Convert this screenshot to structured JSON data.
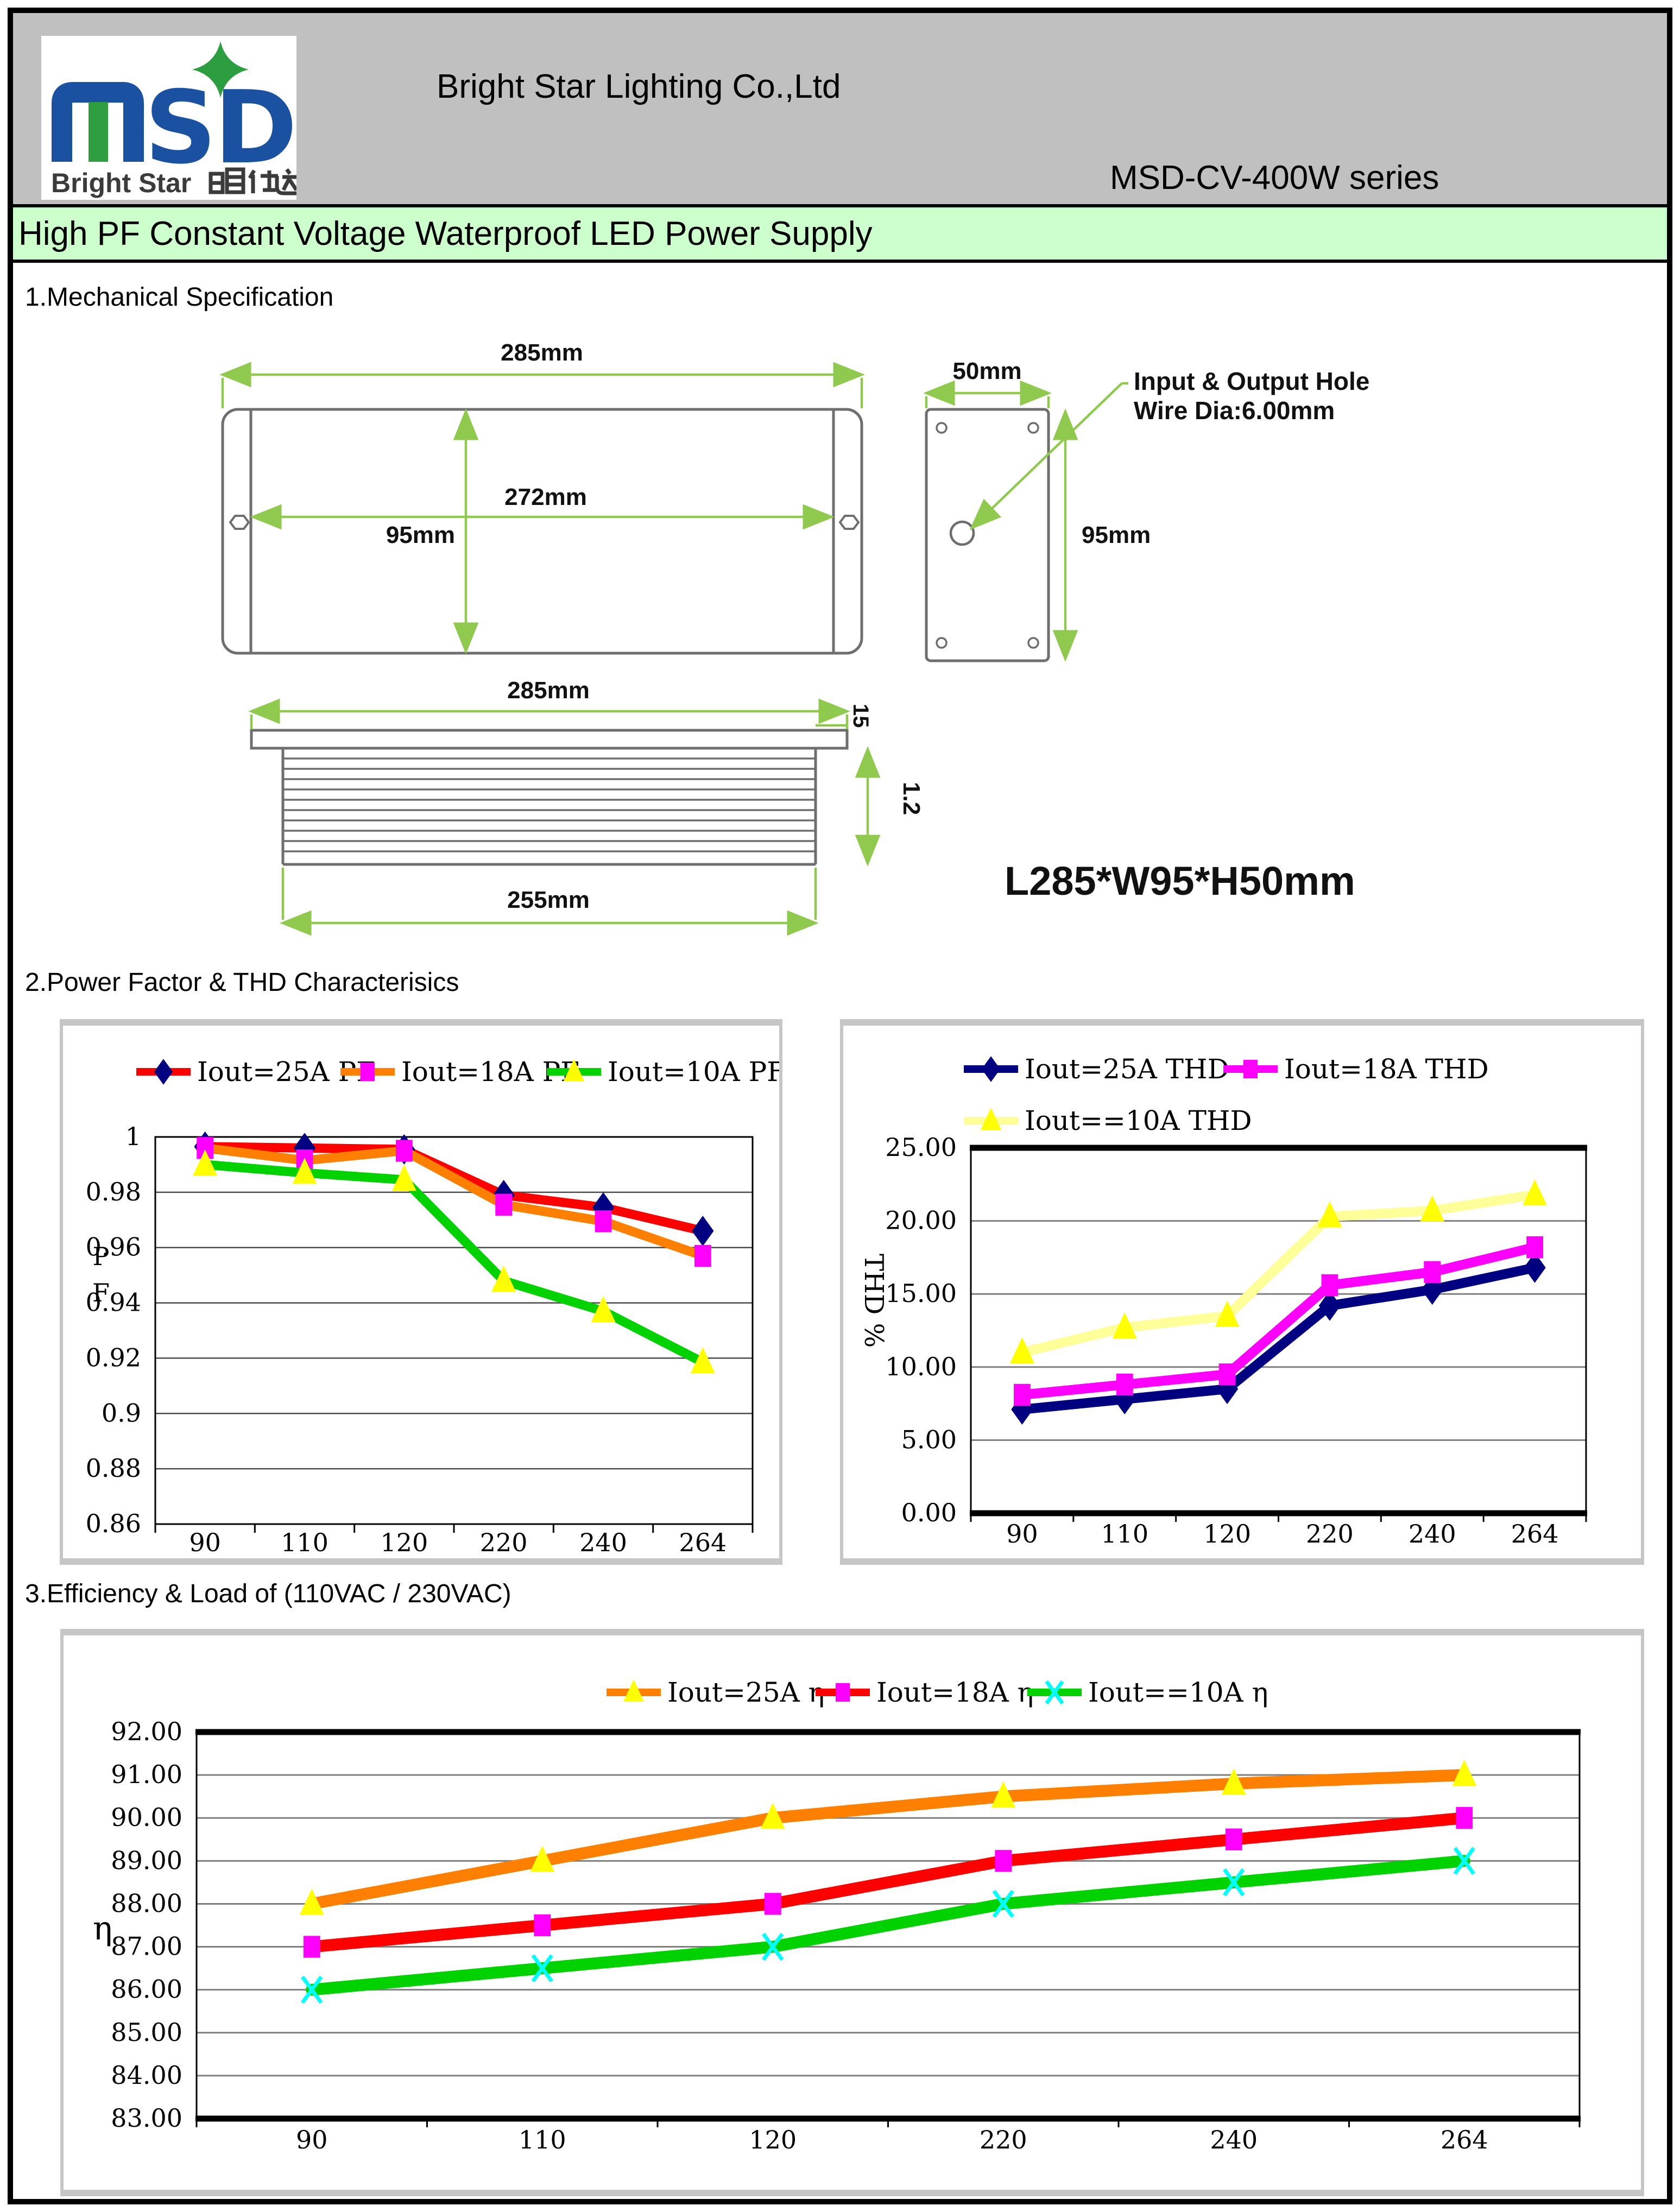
{
  "header": {
    "company": "Bright Star Lighting Co.,Ltd",
    "series": "MSD-CV-400W series",
    "logo": {
      "mark": "MSD",
      "subtitle_latin": "Bright Star",
      "subtitle_cjk": "明仕达"
    }
  },
  "banner": {
    "title": "High PF Constant Voltage Waterproof LED Power Supply"
  },
  "sections": {
    "s1": "1.Mechanical Specification",
    "s2": "2.Power Factor & THD Characterisics",
    "s3": "3.Efficiency & Load of (110VAC / 230VAC)"
  },
  "mech": {
    "dim_285_top": "285mm",
    "dim_272": "272mm",
    "dim_95_center": "95mm",
    "dim_50": "50mm",
    "dim_95_side": "95mm",
    "hole_note_line1": "Input & Output Hole",
    "hole_note_line2": "Wire Dia:6.00mm",
    "dim_285_profile": "285mm",
    "dim_15": "15",
    "dim_1_2": "1.2",
    "dim_255": "255mm",
    "size_text": "L285*W95*H50mm"
  },
  "chart_data": [
    {
      "type": "line",
      "title": "",
      "xlabel": "",
      "ylabel": "P F",
      "categories": [
        "90",
        "110",
        "120",
        "220",
        "240",
        "264"
      ],
      "ylim": [
        0.86,
        1.0
      ],
      "ytick_values": [
        1,
        0.98,
        0.96,
        0.94,
        0.92,
        0.9,
        0.88,
        0.86
      ],
      "ytick_labels": [
        "1",
        "0.98",
        "0.96",
        "0.94",
        "0.92",
        "0.9",
        "0.88",
        "0.86"
      ],
      "grid": true,
      "legend_position": "top",
      "series": [
        {
          "name": "Iout=25A PF",
          "line_color": "#FF0000",
          "marker": "diamond",
          "marker_color": "#000080",
          "values": [
            0.9965,
            0.996,
            0.9955,
            0.979,
            0.9745,
            0.966
          ]
        },
        {
          "name": "Iout=18A PF",
          "line_color": "#FF8000",
          "marker": "square",
          "marker_color": "#FF00FF",
          "values": [
            0.996,
            0.9915,
            0.995,
            0.9755,
            0.9695,
            0.957
          ]
        },
        {
          "name": "Iout=10A PF",
          "line_color": "#00D200",
          "marker": "triangle",
          "marker_color": "#FFFF00",
          "values": [
            0.99,
            0.987,
            0.9845,
            0.948,
            0.937,
            0.9185
          ]
        }
      ]
    },
    {
      "type": "line",
      "title": "",
      "xlabel": "",
      "ylabel": "THD %",
      "categories": [
        "90",
        "110",
        "120",
        "220",
        "240",
        "264"
      ],
      "ylim": [
        0,
        25
      ],
      "ytick_values": [
        25,
        20,
        15,
        10,
        5,
        0
      ],
      "ytick_labels": [
        "25.00",
        "20.00",
        "15.00",
        "10.00",
        "5.00",
        "0.00"
      ],
      "grid": true,
      "legend_position": "top",
      "series": [
        {
          "name": "Iout=25A THD",
          "line_color": "#000080",
          "marker": "diamond",
          "marker_color": "#000080",
          "values": [
            7.1,
            7.8,
            8.5,
            14.2,
            15.3,
            16.8
          ]
        },
        {
          "name": "Iout=18A THD",
          "line_color": "#FF00FF",
          "marker": "square",
          "marker_color": "#FF00FF",
          "values": [
            8.1,
            8.8,
            9.5,
            15.6,
            16.5,
            18.2
          ]
        },
        {
          "name": "Iout==10A THD",
          "line_color": "#FFFF99",
          "marker": "triangle",
          "marker_color": "#FFFF00",
          "values": [
            11.0,
            12.7,
            13.5,
            20.3,
            20.7,
            21.8
          ]
        }
      ]
    },
    {
      "type": "line",
      "title": "",
      "xlabel": "",
      "ylabel": "η",
      "categories": [
        "90",
        "110",
        "120",
        "220",
        "240",
        "264"
      ],
      "ylim": [
        83,
        92
      ],
      "ytick_values": [
        92,
        91,
        90,
        89,
        88,
        87,
        86,
        85,
        84,
        83
      ],
      "ytick_labels": [
        "92.00",
        "91.00",
        "90.00",
        "89.00",
        "88.00",
        "87.00",
        "86.00",
        "85.00",
        "84.00",
        "83.00"
      ],
      "grid": true,
      "legend_position": "top",
      "series": [
        {
          "name": "Iout=25A η",
          "line_color": "#FF8000",
          "marker": "triangle",
          "marker_color": "#FFFF00",
          "values": [
            88.0,
            89.0,
            90.0,
            90.5,
            90.8,
            91.0
          ]
        },
        {
          "name": "Iout=18A η",
          "line_color": "#FF0000",
          "marker": "square",
          "marker_color": "#FF00FF",
          "values": [
            87.0,
            87.5,
            88.0,
            89.0,
            89.5,
            90.0
          ]
        },
        {
          "name": "Iout==10A η",
          "line_color": "#00D200",
          "marker": "x",
          "marker_color": "#00FFFF",
          "values": [
            86.0,
            86.5,
            87.0,
            88.0,
            88.5,
            89.0
          ]
        }
      ]
    }
  ]
}
